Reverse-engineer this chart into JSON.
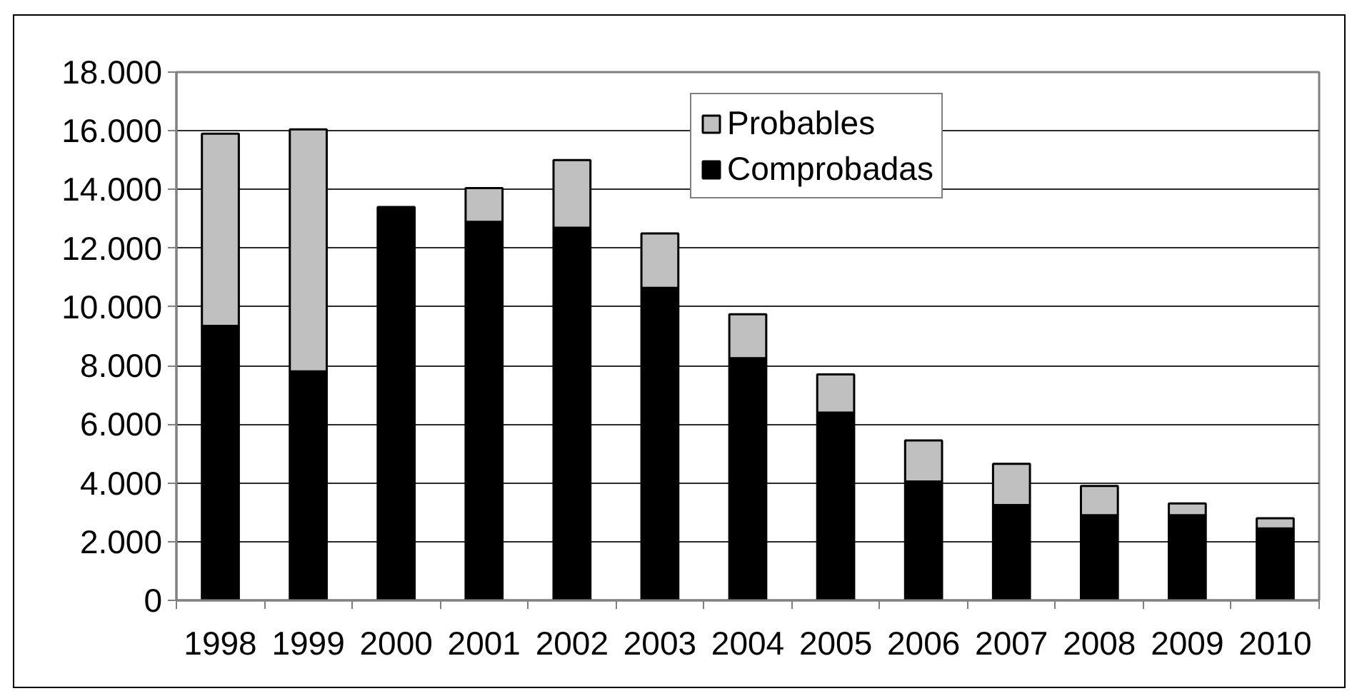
{
  "chart_data": {
    "type": "bar",
    "stacked": true,
    "categories": [
      "1998",
      "1999",
      "2000",
      "2001",
      "2002",
      "2003",
      "2004",
      "2005",
      "2006",
      "2007",
      "2008",
      "2009",
      "2010"
    ],
    "series": [
      {
        "name": "Comprobadas",
        "color": "#000000",
        "values": [
          9350,
          7800,
          13400,
          12900,
          12700,
          10650,
          8250,
          6400,
          4050,
          3250,
          2900,
          2900,
          2450
        ]
      },
      {
        "name": "Probables",
        "color": "#c0c0c0",
        "values": [
          6550,
          8250,
          null,
          1150,
          2300,
          1850,
          1500,
          1300,
          1400,
          1400,
          1000,
          400,
          350
        ]
      }
    ],
    "ylim": [
      0,
      18000
    ],
    "yticks": [
      0,
      {
        "value": 2000,
        "label": "2.000"
      },
      {
        "value": 4000,
        "label": "4.000"
      },
      {
        "value": 6000,
        "label": "6.000"
      },
      {
        "value": 8000,
        "label": "8.000"
      },
      {
        "value": 10000,
        "label": "10.000"
      },
      {
        "value": 12000,
        "label": "12.000"
      },
      {
        "value": 14000,
        "label": "14.000"
      },
      {
        "value": 16000,
        "label": "16.000"
      },
      {
        "value": 18000,
        "label": "18.000"
      }
    ],
    "grid": "y",
    "legend": "top"
  }
}
